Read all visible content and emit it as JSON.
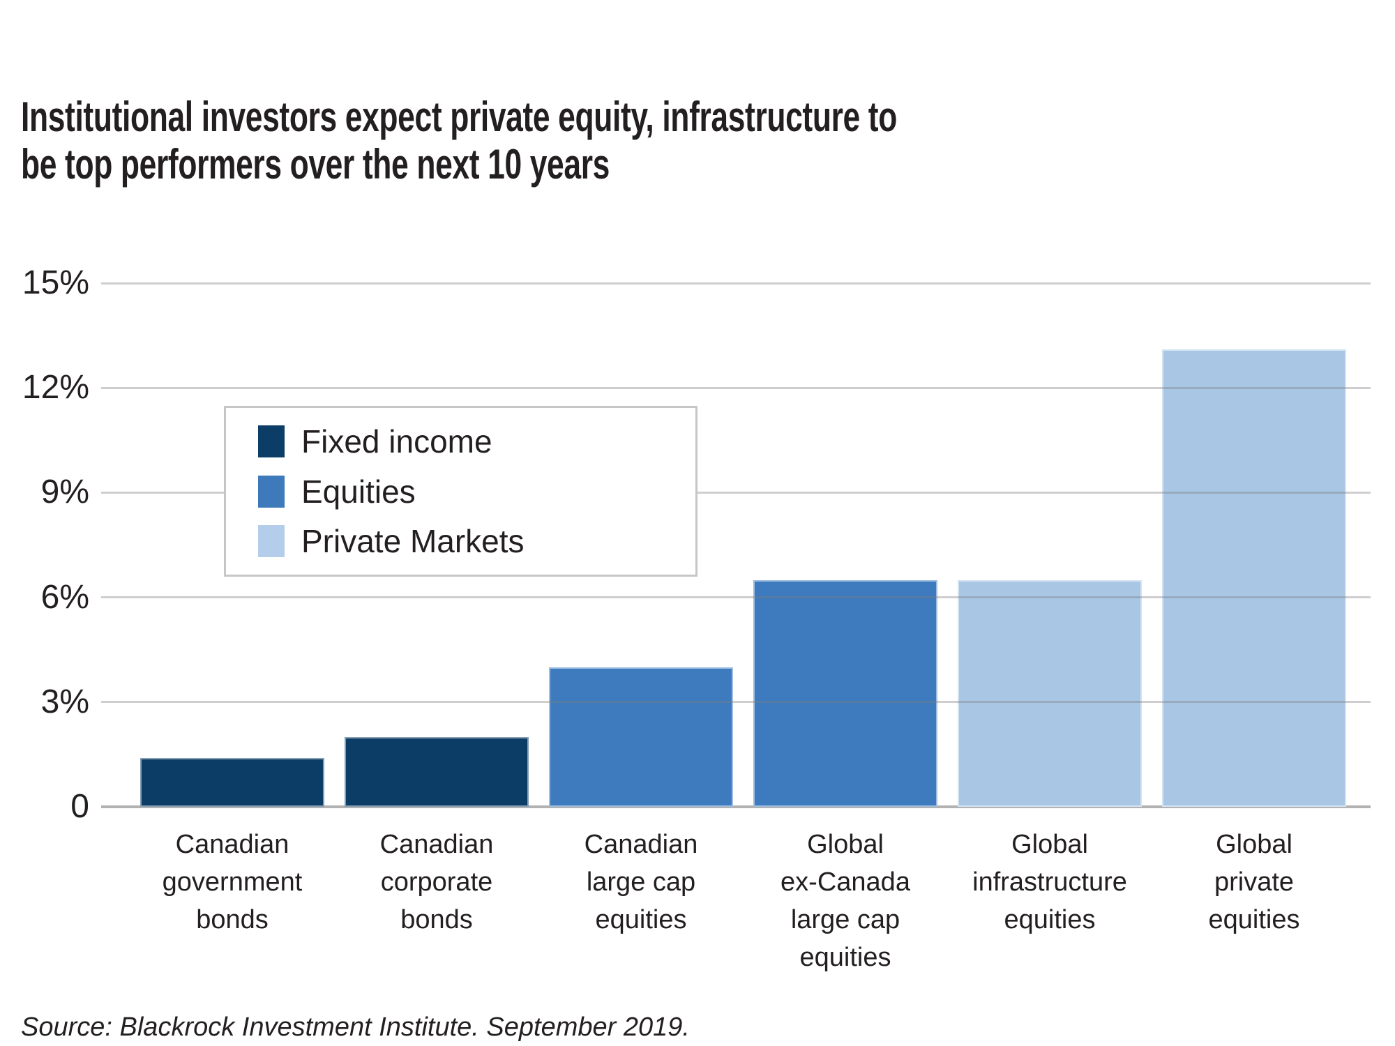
{
  "title": {
    "lines": [
      "Institutional investors expect private equity, infrastructure to",
      "be top performers over the next 10 years"
    ]
  },
  "source": "Source: Blackrock Investment Institute. September 2019.",
  "colors": {
    "background": "#ffffff",
    "text": "#231f20",
    "gridline": "#c9c9c9",
    "axis_line": "#b2b2b2",
    "legend_border": "#c6c6c6"
  },
  "chart_data": {
    "type": "bar",
    "title": "Institutional investors expect private equity, infrastructure to be top performers over the next 10 years",
    "categories": [
      "Canadian government bonds",
      "Canadian corporate bonds",
      "Canadian large cap equities",
      "Global ex-Canada large cap equities",
      "Global infrastructure equities",
      "Global private equities"
    ],
    "category_lines": [
      [
        "Canadian",
        "government",
        "bonds"
      ],
      [
        "Canadian",
        "corporate",
        "bonds"
      ],
      [
        "Canadian",
        "large cap",
        "equities"
      ],
      [
        "Global",
        "ex-Canada",
        "large cap",
        "equities"
      ],
      [
        "Global",
        "infrastructure",
        "equities"
      ],
      [
        "Global",
        "private",
        "equities"
      ]
    ],
    "values": [
      1.4,
      2.0,
      4.0,
      6.5,
      6.5,
      13.1
    ],
    "unit": "percent",
    "groups": [
      "Fixed income",
      "Fixed income",
      "Equities",
      "Equities",
      "Private Markets",
      "Private Markets"
    ],
    "bar_colors": [
      "#0c3d66",
      "#0c3d66",
      "#3d7bbe",
      "#3d7bbe",
      "#a9c6e4",
      "#a9c6e4"
    ],
    "legend": [
      {
        "label": "Fixed income",
        "color": "#0c3d66"
      },
      {
        "label": "Equities",
        "color": "#3e7abb"
      },
      {
        "label": "Private Markets",
        "color": "#b3cdea"
      }
    ],
    "legend_position": "inside-upper-left",
    "y_ticks": [
      {
        "label": "15%",
        "value": 15
      },
      {
        "label": "12%",
        "value": 12
      },
      {
        "label": "9%",
        "value": 9
      },
      {
        "label": "6%",
        "value": 6
      },
      {
        "label": "3%",
        "value": 3
      },
      {
        "label": "0",
        "value": 0
      }
    ],
    "ylim": [
      0,
      15
    ],
    "grid": true,
    "xlabel": "",
    "ylabel": ""
  }
}
